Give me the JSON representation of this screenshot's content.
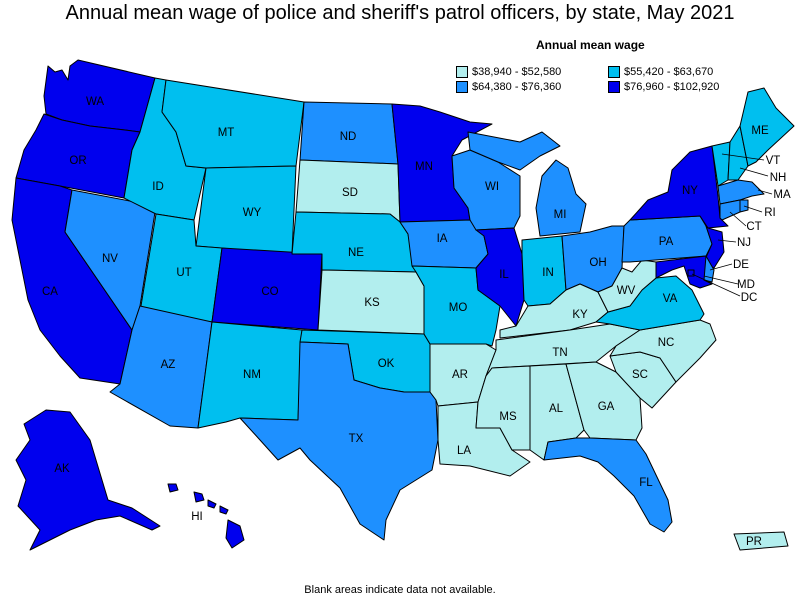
{
  "title": "Annual mean wage of police and sheriff's patrol officers, by state, May 2021",
  "legend": {
    "title": "Annual mean wage",
    "items": [
      {
        "label": "$38,940 - $52,580",
        "color": "#b2eeee"
      },
      {
        "label": "$55,420 - $63,670",
        "color": "#00bfef"
      },
      {
        "label": "$64,380 - $76,360",
        "color": "#1e90ff"
      },
      {
        "label": "$76,960 - $102,920",
        "color": "#0000ee"
      }
    ]
  },
  "footer": "Blank areas indicate data not available.",
  "states": {
    "WA": "WA",
    "OR": "OR",
    "CA": "CA",
    "NV": "NV",
    "ID": "ID",
    "MT": "MT",
    "WY": "WY",
    "UT": "UT",
    "AZ": "AZ",
    "CO": "CO",
    "NM": "NM",
    "ND": "ND",
    "SD": "SD",
    "NE": "NE",
    "KS": "KS",
    "OK": "OK",
    "TX": "TX",
    "MN": "MN",
    "IA": "IA",
    "MO": "MO",
    "AR": "AR",
    "LA": "LA",
    "WI": "WI",
    "IL": "IL",
    "MI": "MI",
    "IN": "IN",
    "OH": "OH",
    "KY": "KY",
    "TN": "TN",
    "MS": "MS",
    "AL": "AL",
    "GA": "GA",
    "FL": "FL",
    "SC": "SC",
    "NC": "NC",
    "VA": "VA",
    "WV": "WV",
    "PA": "PA",
    "NY": "NY",
    "ME": "ME",
    "VT": "VT",
    "NH": "NH",
    "MA": "MA",
    "RI": "RI",
    "CT": "CT",
    "NJ": "NJ",
    "DE": "DE",
    "MD": "MD",
    "DC": "DC",
    "AK": "AK",
    "HI": "HI",
    "PR": "PR"
  },
  "categories": {
    "WA": 3,
    "OR": 3,
    "CA": 3,
    "NV": 2,
    "ID": 1,
    "MT": 1,
    "WY": 1,
    "UT": 1,
    "AZ": 2,
    "CO": 3,
    "NM": 1,
    "ND": 2,
    "SD": 0,
    "NE": 1,
    "KS": 0,
    "OK": 1,
    "TX": 2,
    "MN": 3,
    "IA": 2,
    "MO": 1,
    "AR": 0,
    "LA": 0,
    "WI": 2,
    "IL": 3,
    "MI": 2,
    "IN": 1,
    "OH": 2,
    "KY": 0,
    "TN": 0,
    "MS": 0,
    "AL": 0,
    "GA": 0,
    "FL": 2,
    "SC": 0,
    "NC": 0,
    "VA": 1,
    "WV": 0,
    "PA": 2,
    "NY": 3,
    "ME": 1,
    "VT": 1,
    "NH": 1,
    "MA": 2,
    "RI": 2,
    "CT": 2,
    "NJ": 3,
    "DE": 2,
    "MD": 3,
    "DC": 3,
    "AK": 3,
    "HI": 3,
    "PR": 0
  }
}
